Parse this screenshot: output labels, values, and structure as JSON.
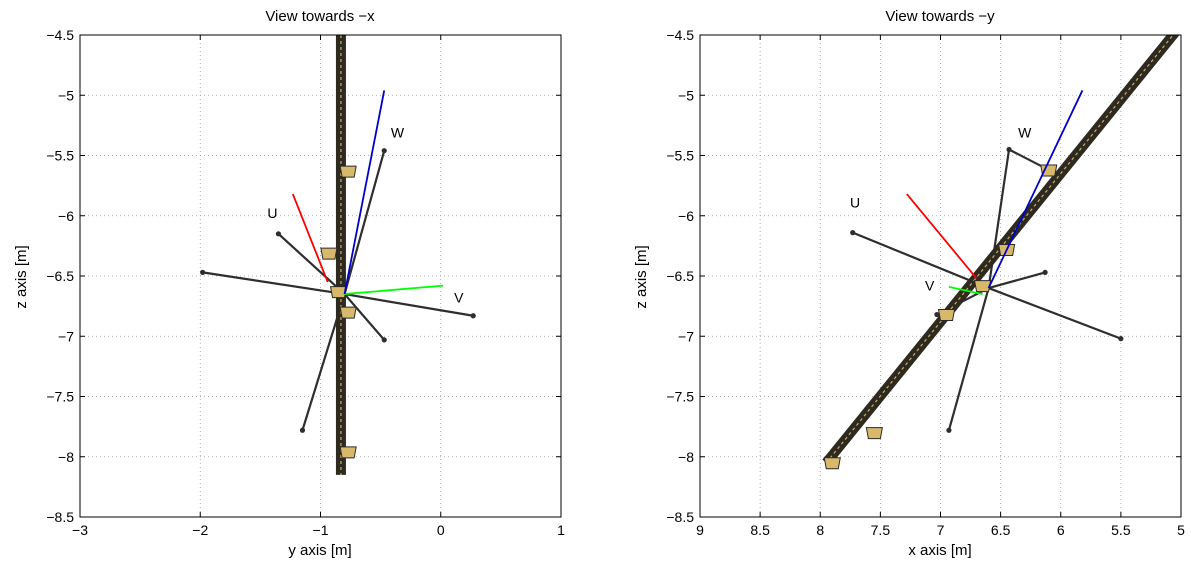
{
  "chart_data": [
    {
      "type": "line",
      "title": "View towards −x",
      "xlabel": "y axis [m]",
      "ylabel": "z axis [m]",
      "xlim": [
        -3,
        1
      ],
      "ylim": [
        -8.5,
        -4.5
      ],
      "x_reversed": false,
      "y_reversed": true,
      "xticks": [
        "−3",
        "−2",
        "−1",
        "0",
        "1"
      ],
      "yticks": [
        "−4.5",
        "−5",
        "−5.5",
        "−6",
        "−6.5",
        "−7",
        "−7.5",
        "−8",
        "−8.5"
      ],
      "grid": true,
      "boom": {
        "from": [
          -0.83,
          -4.5
        ],
        "to": [
          -0.83,
          -8.15
        ]
      },
      "members": [
        {
          "from": [
            -0.8,
            -6.65
          ],
          "to": [
            -1.35,
            -6.15
          ]
        },
        {
          "from": [
            -0.8,
            -6.65
          ],
          "to": [
            -1.98,
            -6.47
          ]
        },
        {
          "from": [
            -0.8,
            -6.65
          ],
          "to": [
            0.27,
            -6.83
          ]
        },
        {
          "from": [
            -0.8,
            -6.65
          ],
          "to": [
            -0.47,
            -5.46
          ]
        },
        {
          "from": [
            -0.8,
            -6.65
          ],
          "to": [
            -1.15,
            -7.78
          ]
        },
        {
          "from": [
            -0.8,
            -6.65
          ],
          "to": [
            -0.47,
            -7.03
          ]
        }
      ],
      "mounts": [
        {
          "x": -0.77,
          "y": -5.63
        },
        {
          "x": -0.93,
          "y": -6.31
        },
        {
          "x": -0.85,
          "y": -6.63
        },
        {
          "x": -0.77,
          "y": -6.8
        },
        {
          "x": -0.77,
          "y": -7.96
        }
      ],
      "series": [
        {
          "name": "U",
          "color": "#ff0000",
          "from": [
            -0.94,
            -6.55
          ],
          "to": [
            -1.23,
            -5.82
          ]
        },
        {
          "name": "V",
          "color": "#00ff00",
          "from": [
            -0.8,
            -6.65
          ],
          "to": [
            0.02,
            -6.58
          ]
        },
        {
          "name": "W",
          "color": "#0000cc",
          "from": [
            -0.8,
            -6.65
          ],
          "to": [
            -0.47,
            -4.96
          ]
        }
      ],
      "labels": [
        {
          "text": "U",
          "x": -1.4,
          "y": -6.02
        },
        {
          "text": "V",
          "x": 0.15,
          "y": -6.72
        },
        {
          "text": "W",
          "x": -0.36,
          "y": -5.35
        }
      ]
    },
    {
      "type": "line",
      "title": "View towards −y",
      "xlabel": "x axis [m]",
      "ylabel": "z axis [m]",
      "xlim": [
        5,
        9
      ],
      "ylim": [
        -8.5,
        -4.5
      ],
      "x_reversed": true,
      "y_reversed": true,
      "xticks": [
        "9",
        "8.5",
        "8",
        "7.5",
        "7",
        "6.5",
        "6",
        "5.5",
        "5"
      ],
      "yticks": [
        "−4.5",
        "−5",
        "−5.5",
        "−6",
        "−6.5",
        "−7",
        "−7.5",
        "−8",
        "−8.5"
      ],
      "grid": true,
      "boom": {
        "from": [
          7.95,
          -8.05
        ],
        "to": [
          5.05,
          -4.48
        ]
      },
      "members": [
        {
          "from": [
            6.6,
            -6.6
          ],
          "to": [
            7.73,
            -6.14
          ]
        },
        {
          "from": [
            6.6,
            -6.6
          ],
          "to": [
            5.5,
            -7.02
          ]
        },
        {
          "from": [
            6.6,
            -6.6
          ],
          "to": [
            6.43,
            -5.45
          ]
        },
        {
          "from": [
            6.6,
            -6.6
          ],
          "to": [
            6.93,
            -7.78
          ]
        },
        {
          "from": [
            6.6,
            -6.6
          ],
          "to": [
            7.03,
            -6.82
          ]
        },
        {
          "from": [
            6.6,
            -6.6
          ],
          "to": [
            6.13,
            -6.47
          ]
        },
        {
          "from": [
            6.43,
            -5.45
          ],
          "to": [
            6.1,
            -5.62
          ]
        }
      ],
      "mounts": [
        {
          "x": 6.1,
          "y": -5.62
        },
        {
          "x": 6.45,
          "y": -6.28
        },
        {
          "x": 6.65,
          "y": -6.58
        },
        {
          "x": 6.95,
          "y": -6.82
        },
        {
          "x": 7.55,
          "y": -7.8
        },
        {
          "x": 7.9,
          "y": -8.05
        }
      ],
      "series": [
        {
          "name": "U",
          "color": "#ff0000",
          "from": [
            6.7,
            -6.52
          ],
          "to": [
            7.28,
            -5.82
          ]
        },
        {
          "name": "V",
          "color": "#00ff00",
          "from": [
            6.65,
            -6.65
          ],
          "to": [
            6.93,
            -6.59
          ]
        },
        {
          "name": "W",
          "color": "#0000cc",
          "from": [
            6.6,
            -6.6
          ],
          "to": [
            5.82,
            -4.96
          ]
        }
      ],
      "labels": [
        {
          "text": "U",
          "x": 7.71,
          "y": -5.93
        },
        {
          "text": "V",
          "x": 7.09,
          "y": -6.62
        },
        {
          "text": "W",
          "x": 6.3,
          "y": -5.35
        }
      ]
    }
  ]
}
